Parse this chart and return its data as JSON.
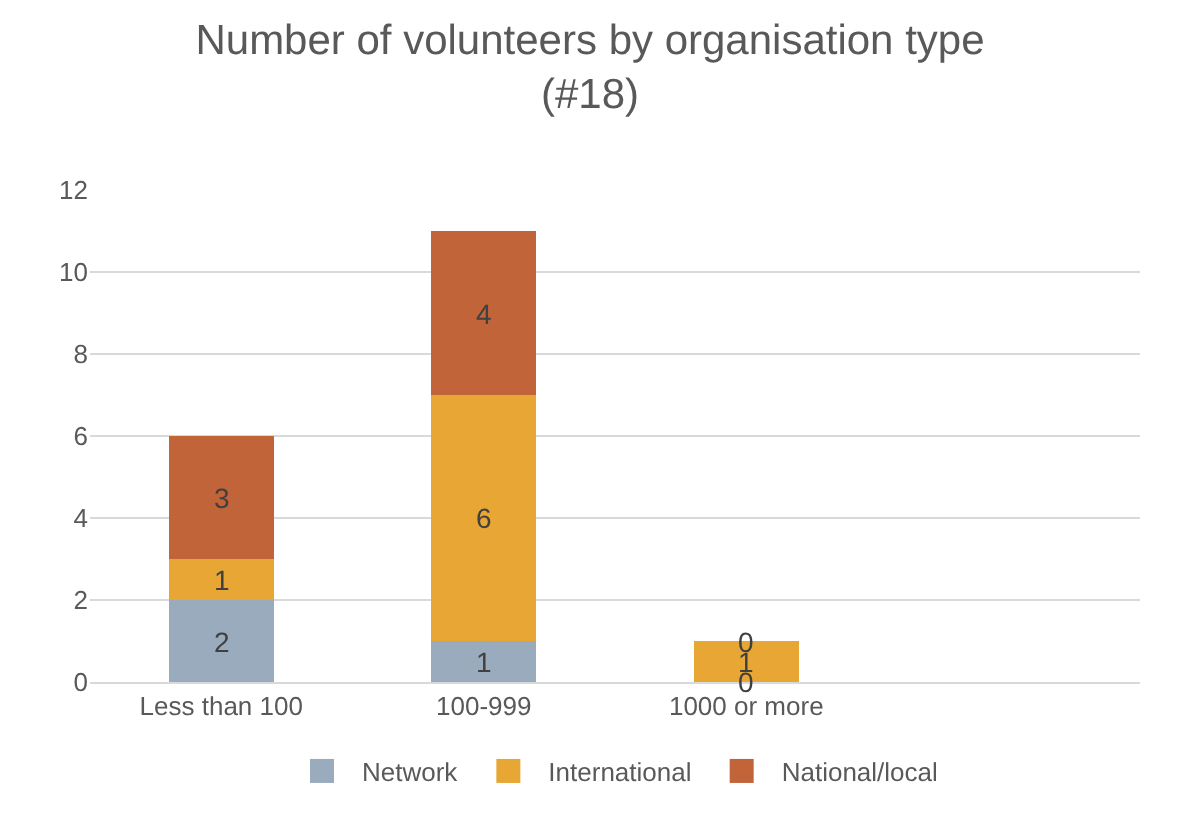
{
  "chart_data": {
    "type": "bar",
    "title": "Number of volunteers by organisation type\n(#18)",
    "categories": [
      "Less than 100",
      "100-999",
      "1000 or more",
      null
    ],
    "series": [
      {
        "name": "Network",
        "color": "#9aabbd",
        "values": [
          2,
          1,
          0,
          null
        ]
      },
      {
        "name": "International",
        "color": "#e8a735",
        "values": [
          1,
          6,
          1,
          null
        ]
      },
      {
        "name": "National/local",
        "color": "#c2643a",
        "values": [
          3,
          4,
          0,
          null
        ]
      }
    ],
    "stacked": true,
    "data_labels": true,
    "ylim": [
      0,
      12
    ],
    "yticks": [
      0,
      2,
      4,
      6,
      8,
      10,
      12
    ],
    "grid": "y",
    "legend": "bottom"
  }
}
